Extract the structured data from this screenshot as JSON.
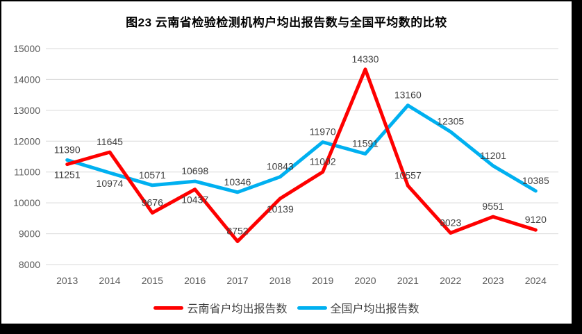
{
  "title": "图23 云南省检验检测机构户均出报告数与全国平均数的比较",
  "chart_data": {
    "type": "line",
    "x": [
      "2013",
      "2014",
      "2015",
      "2016",
      "2017",
      "2018",
      "2019",
      "2020",
      "2021",
      "2022",
      "2023",
      "2024"
    ],
    "series": [
      {
        "name": "云南省户均出报告数",
        "slug": "yunnan",
        "color": "#FE0000",
        "values": [
          11251,
          11645,
          9676,
          10437,
          8752,
          10139,
          11002,
          14330,
          10557,
          9023,
          9551,
          9120
        ],
        "label_positions": [
          "below",
          "above",
          "above",
          "below",
          "above",
          "below",
          "above",
          "above",
          "above",
          "above",
          "above",
          "above"
        ]
      },
      {
        "name": "全国户均出报告数",
        "slug": "national",
        "color": "#00B0F0",
        "values": [
          11390,
          10974,
          10571,
          10698,
          10346,
          10843,
          11970,
          11591,
          13160,
          12305,
          11201,
          10385
        ],
        "label_positions": [
          "above",
          "below",
          "above",
          "above",
          "above",
          "above",
          "above",
          "above",
          "above",
          "above",
          "above",
          "above"
        ]
      }
    ],
    "ylim": [
      8000,
      15000
    ],
    "ytick_step": 1000,
    "yticks": [
      8000,
      9000,
      10000,
      11000,
      12000,
      13000,
      14000,
      15000
    ],
    "grid": true,
    "data_labels": true,
    "legend_position": "bottom"
  },
  "colors": {
    "background": "#FFFFFF",
    "frame": "#000000",
    "gridline": "#D9D9D9",
    "axis_text": "#595959",
    "data_label_text": "#404040",
    "title_text": "#000000",
    "legend_text": "#404040"
  }
}
